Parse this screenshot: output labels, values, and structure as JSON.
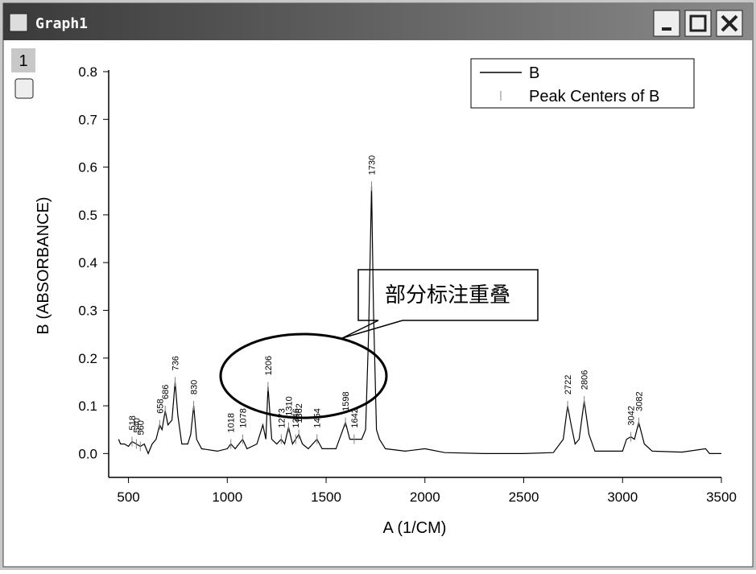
{
  "window": {
    "title": "Graph1",
    "layer": "1"
  },
  "chart_data": {
    "type": "line",
    "xlabel": "A (1/CM)",
    "ylabel": "B (ABSORBANCE)",
    "annotation": "部分标注重叠",
    "xlim": [
      400,
      3500
    ],
    "ylim": [
      -0.05,
      0.8
    ],
    "xticks": [
      500,
      1000,
      1500,
      2000,
      2500,
      3000,
      3500
    ],
    "yticks": [
      {
        "value": 0,
        "label": "0.0"
      },
      0.1,
      0.2,
      0.3,
      0.4,
      0.5,
      0.6,
      0.7,
      0.8
    ],
    "legend": "top-right",
    "series": [
      {
        "name": "B",
        "color": "#000000",
        "x": [
          450,
          460,
          480,
          500,
          518,
          540,
          560,
          580,
          600,
          620,
          640,
          658,
          670,
          686,
          700,
          720,
          736,
          750,
          770,
          800,
          815,
          830,
          845,
          870,
          950,
          1000,
          1018,
          1040,
          1078,
          1100,
          1150,
          1180,
          1195,
          1206,
          1225,
          1250,
          1273,
          1290,
          1310,
          1330,
          1346,
          1362,
          1380,
          1410,
          1454,
          1480,
          1550,
          1598,
          1620,
          1642,
          1680,
          1700,
          1715,
          1730,
          1740,
          1755,
          1770,
          1800,
          1900,
          2000,
          2100,
          2300,
          2500,
          2650,
          2700,
          2722,
          2740,
          2760,
          2780,
          2806,
          2830,
          2860,
          3000,
          3020,
          3042,
          3060,
          3082,
          3110,
          3150,
          3300,
          3420,
          3440,
          3500
        ],
        "values": [
          0.03,
          0.02,
          0.02,
          0.015,
          0.025,
          0.02,
          0.015,
          0.02,
          0.0,
          0.02,
          0.03,
          0.06,
          0.05,
          0.09,
          0.06,
          0.07,
          0.15,
          0.08,
          0.02,
          0.02,
          0.04,
          0.1,
          0.03,
          0.01,
          0.005,
          0.01,
          0.02,
          0.01,
          0.03,
          0.01,
          0.02,
          0.06,
          0.03,
          0.14,
          0.03,
          0.02,
          0.03,
          0.02,
          0.055,
          0.02,
          0.03,
          0.04,
          0.02,
          0.01,
          0.03,
          0.01,
          0.01,
          0.065,
          0.03,
          0.03,
          0.03,
          0.05,
          0.25,
          0.56,
          0.3,
          0.05,
          0.03,
          0.01,
          0.005,
          0.01,
          0.002,
          0.0,
          0.0,
          0.002,
          0.03,
          0.1,
          0.06,
          0.02,
          0.03,
          0.11,
          0.04,
          0.005,
          0.005,
          0.03,
          0.035,
          0.03,
          0.065,
          0.02,
          0.005,
          0.003,
          0.01,
          0.0,
          0.0
        ]
      },
      {
        "name": "Peak Centers of B",
        "color": "#808080",
        "x": [
          518,
          540,
          560,
          658,
          686,
          736,
          830,
          1018,
          1078,
          1206,
          1273,
          1310,
          1346,
          1362,
          1454,
          1598,
          1642,
          1730,
          2722,
          2806,
          3042,
          3082
        ],
        "values": [
          0.025,
          0.02,
          0.015,
          0.06,
          0.09,
          0.15,
          0.1,
          0.02,
          0.03,
          0.14,
          0.03,
          0.055,
          0.03,
          0.04,
          0.03,
          0.065,
          0.03,
          0.56,
          0.1,
          0.11,
          0.035,
          0.065
        ]
      }
    ]
  }
}
